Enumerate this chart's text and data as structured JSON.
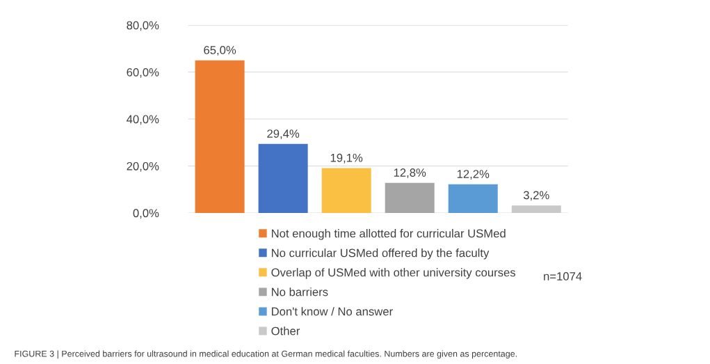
{
  "chart_data": {
    "type": "bar",
    "categories": [
      null
    ],
    "series": [
      {
        "name": "Not enough time allotted for curricular USMed",
        "color": "#ed7d31",
        "values": [
          65.0
        ],
        "value_labels": [
          "65,0%"
        ]
      },
      {
        "name": "No curricular USMed offered by the faculty",
        "color": "#4472c4",
        "values": [
          29.4
        ],
        "value_labels": [
          "29,4%"
        ]
      },
      {
        "name": "Overlap of USMed with other university courses",
        "color": "#f9c043",
        "values": [
          19.1
        ],
        "value_labels": [
          "19,1%"
        ]
      },
      {
        "name": "No barriers",
        "color": "#a5a5a5",
        "values": [
          12.8
        ],
        "value_labels": [
          "12,8%"
        ]
      },
      {
        "name": "Don't know / No answer",
        "color": "#5b9bd5",
        "values": [
          12.2
        ],
        "value_labels": [
          "12,2%"
        ]
      },
      {
        "name": "Other",
        "color": "#c9c9c9",
        "values": [
          3.2
        ],
        "value_labels": [
          "3,2%"
        ]
      }
    ],
    "ylim": [
      0,
      80
    ],
    "yticks": [
      {
        "value": 0,
        "label": "0,0%"
      },
      {
        "value": 20,
        "label": "20,0%"
      },
      {
        "value": 40,
        "label": "40,0%"
      },
      {
        "value": 60,
        "label": "60,0%"
      },
      {
        "value": 80,
        "label": "80,0%"
      }
    ],
    "grid": "y",
    "legend": "bottom",
    "annotations": [
      "n=1074",
      "FIGURE 3 | Perceived barriers for ultrasound in medical education at German medical faculties. Numbers are given as percentage."
    ]
  }
}
